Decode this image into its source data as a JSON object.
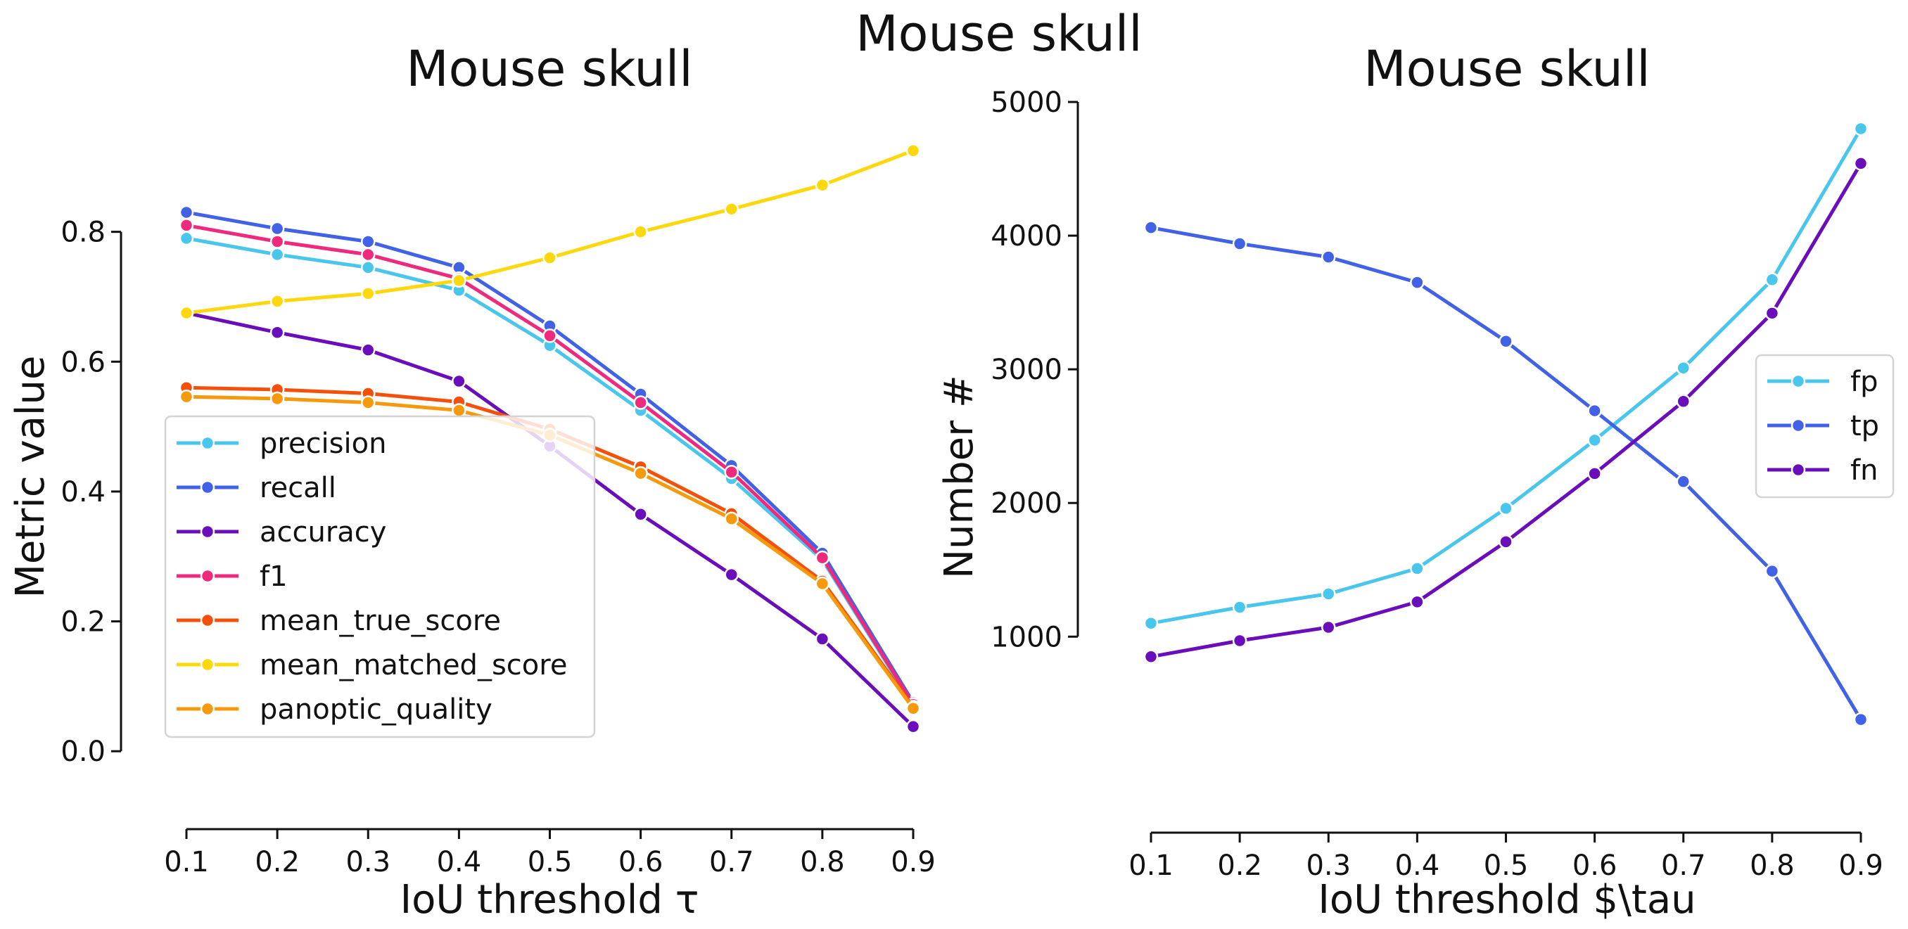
{
  "figure": {
    "suptitle": "Mouse skull"
  },
  "chart_data": [
    {
      "type": "line",
      "title": "Mouse skull",
      "xlabel": "IoU threshold τ",
      "ylabel": "Metric value",
      "x": [
        0.1,
        0.2,
        0.3,
        0.4,
        0.5,
        0.6,
        0.7,
        0.8,
        0.9
      ],
      "xticks": [
        "0.1",
        "0.2",
        "0.3",
        "0.4",
        "0.5",
        "0.6",
        "0.7",
        "0.8",
        "0.9"
      ],
      "yticks": [
        0.0,
        0.2,
        0.4,
        0.6,
        0.8
      ],
      "ytick_labels": [
        "0.0",
        "0.2",
        "0.4",
        "0.6",
        "0.8"
      ],
      "xlim": [
        0.1,
        0.9
      ],
      "ylim": [
        -0.12,
        1.0
      ],
      "grid": false,
      "legend_placement": "lower-left",
      "series": [
        {
          "name": "precision",
          "color": "#48c6eb",
          "values": [
            0.79,
            0.765,
            0.745,
            0.71,
            0.625,
            0.525,
            0.42,
            0.295,
            0.07
          ]
        },
        {
          "name": "recall",
          "color": "#4161e6",
          "values": [
            0.83,
            0.805,
            0.785,
            0.745,
            0.655,
            0.55,
            0.44,
            0.305,
            0.075
          ]
        },
        {
          "name": "accuracy",
          "color": "#6a0dba",
          "values": [
            0.675,
            0.645,
            0.618,
            0.57,
            0.47,
            0.365,
            0.272,
            0.173,
            0.038
          ]
        },
        {
          "name": "f1",
          "color": "#ef2a7c",
          "values": [
            0.81,
            0.785,
            0.765,
            0.728,
            0.64,
            0.537,
            0.43,
            0.298,
            0.072
          ]
        },
        {
          "name": "mean_true_score",
          "color": "#f4500c",
          "values": [
            0.56,
            0.557,
            0.551,
            0.538,
            0.496,
            0.438,
            0.366,
            0.262,
            0.068
          ]
        },
        {
          "name": "mean_matched_score",
          "color": "#fcd80c",
          "values": [
            0.675,
            0.693,
            0.705,
            0.725,
            0.76,
            0.8,
            0.835,
            0.872,
            0.925
          ]
        },
        {
          "name": "panoptic_quality",
          "color": "#f59a0c",
          "values": [
            0.546,
            0.543,
            0.537,
            0.525,
            0.487,
            0.428,
            0.358,
            0.258,
            0.066
          ]
        }
      ]
    },
    {
      "type": "line",
      "title": "Mouse skull",
      "xlabel": "IoU threshold $\\tau",
      "ylabel": "Number #",
      "x": [
        0.1,
        0.2,
        0.3,
        0.4,
        0.5,
        0.6,
        0.7,
        0.8,
        0.9
      ],
      "xticks": [
        "0.1",
        "0.2",
        "0.3",
        "0.4",
        "0.5",
        "0.6",
        "0.7",
        "0.8",
        "0.9"
      ],
      "yticks": [
        1000,
        2000,
        3000,
        4000,
        5000
      ],
      "ytick_labels": [
        "1000",
        "2000",
        "3000",
        "4000",
        "5000"
      ],
      "xlim": [
        0.1,
        0.9
      ],
      "ylim": [
        -440,
        5000
      ],
      "grid": false,
      "legend_placement": "center-right",
      "series": [
        {
          "name": "fp",
          "color": "#48c6eb",
          "values": [
            1100,
            1220,
            1320,
            1510,
            1960,
            2470,
            3010,
            3670,
            4800
          ]
        },
        {
          "name": "tp",
          "color": "#4161e6",
          "values": [
            4060,
            3940,
            3840,
            3650,
            3210,
            2690,
            2160,
            1490,
            380
          ]
        },
        {
          "name": "fn",
          "color": "#6a0dba",
          "values": [
            850,
            970,
            1070,
            1260,
            1710,
            2220,
            2760,
            3420,
            4540
          ]
        }
      ]
    }
  ]
}
